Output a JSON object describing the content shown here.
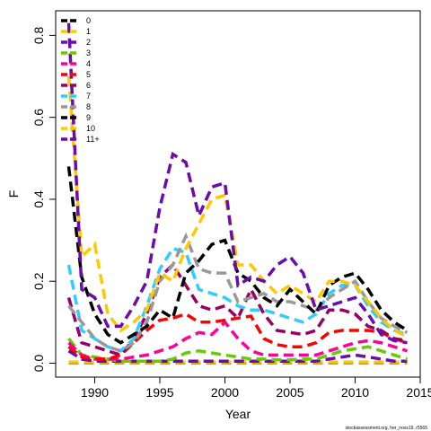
{
  "chart_data": {
    "type": "line",
    "xlabel": "Year",
    "ylabel": "F",
    "footnote": "stockassessment.org, her_noss19, r5565",
    "x": [
      1988,
      1989,
      1990,
      1991,
      1992,
      1993,
      1994,
      1995,
      1996,
      1997,
      1998,
      1999,
      2000,
      2001,
      2002,
      2003,
      2004,
      2005,
      2006,
      2007,
      2008,
      2009,
      2010,
      2011,
      2012,
      2013,
      2014
    ],
    "xlim": [
      1987,
      2015
    ],
    "xticks": [
      1990,
      1995,
      2000,
      2005,
      2010,
      2015
    ],
    "ylim": [
      -0.034,
      0.86
    ],
    "yticks": [
      {
        "value": 0,
        "label": "0.0"
      },
      0.2,
      0.4,
      0.6,
      0.8
    ],
    "legend": "topleft",
    "series": [
      {
        "name": "0",
        "color": "#000000",
        "values": [
          0.002,
          0.002,
          0.002,
          0.002,
          0.002,
          0.002,
          0.002,
          0.002,
          0.002,
          0.002,
          0.002,
          0.002,
          0.002,
          0.002,
          0.002,
          0.002,
          0.002,
          0.002,
          0.002,
          0.002,
          0.002,
          0.002,
          0.002,
          0.002,
          0.002,
          0.002,
          0.002
        ]
      },
      {
        "name": "1",
        "color": "#FFC800",
        "values": [
          0.003,
          0.003,
          0.003,
          0.003,
          0.003,
          0.003,
          0.003,
          0.003,
          0.003,
          0.003,
          0.003,
          0.003,
          0.003,
          0.003,
          0.003,
          0.003,
          0.003,
          0.003,
          0.003,
          0.003,
          0.003,
          0.003,
          0.003,
          0.003,
          0.003,
          0.003,
          0.003
        ]
      },
      {
        "name": "2",
        "color": "#6A0DAD",
        "values": [
          0.03,
          0.01,
          0.005,
          0.005,
          0.005,
          0.005,
          0.005,
          0.005,
          0.005,
          0.005,
          0.005,
          0.005,
          0.005,
          0.005,
          0.005,
          0.005,
          0.005,
          0.005,
          0.005,
          0.005,
          0.01,
          0.015,
          0.02,
          0.015,
          0.01,
          0.005,
          0.005
        ]
      },
      {
        "name": "3",
        "color": "#66CC00",
        "values": [
          0.06,
          0.02,
          0.015,
          0.01,
          0.005,
          0.005,
          0.005,
          0.005,
          0.01,
          0.025,
          0.03,
          0.025,
          0.02,
          0.015,
          0.01,
          0.01,
          0.008,
          0.008,
          0.01,
          0.01,
          0.02,
          0.03,
          0.035,
          0.04,
          0.03,
          0.02,
          0.01
        ]
      },
      {
        "name": "4",
        "color": "#FF0099",
        "values": [
          0.05,
          0.02,
          0.01,
          0.01,
          0.01,
          0.015,
          0.02,
          0.03,
          0.04,
          0.06,
          0.075,
          0.07,
          0.1,
          0.06,
          0.03,
          0.02,
          0.02,
          0.02,
          0.02,
          0.02,
          0.03,
          0.04,
          0.05,
          0.055,
          0.05,
          0.04,
          0.03
        ]
      },
      {
        "name": "5",
        "color": "#FF0000",
        "values": [
          0.04,
          0.015,
          0.01,
          0.01,
          0.02,
          0.05,
          0.08,
          0.105,
          0.11,
          0.12,
          0.1,
          0.1,
          0.105,
          0.11,
          0.115,
          0.06,
          0.045,
          0.04,
          0.04,
          0.05,
          0.075,
          0.08,
          0.08,
          0.08,
          0.075,
          0.06,
          0.05
        ]
      },
      {
        "name": "6",
        "color": "#990066",
        "values": [
          0.16,
          0.05,
          0.04,
          0.03,
          0.02,
          0.06,
          0.12,
          0.21,
          0.24,
          0.19,
          0.14,
          0.13,
          0.14,
          0.11,
          0.18,
          0.12,
          0.08,
          0.075,
          0.07,
          0.08,
          0.13,
          0.13,
          0.12,
          0.09,
          0.08,
          0.06,
          0.055
        ]
      },
      {
        "name": "7",
        "color": "#33CCFF",
        "values": [
          0.24,
          0.08,
          0.06,
          0.04,
          0.03,
          0.06,
          0.14,
          0.23,
          0.28,
          0.27,
          0.18,
          0.17,
          0.16,
          0.14,
          0.13,
          0.13,
          0.12,
          0.11,
          0.1,
          0.12,
          0.17,
          0.19,
          0.19,
          0.14,
          0.1,
          0.08,
          0.07
        ]
      },
      {
        "name": "8",
        "color": "#999999",
        "values": [
          0.14,
          0.1,
          0.06,
          0.04,
          0.03,
          0.05,
          0.1,
          0.2,
          0.24,
          0.31,
          0.23,
          0.22,
          0.22,
          0.15,
          0.16,
          0.17,
          0.15,
          0.15,
          0.14,
          0.13,
          0.16,
          0.18,
          0.2,
          0.15,
          0.11,
          0.09,
          0.075
        ]
      },
      {
        "name": "9",
        "color": "#000000",
        "values": [
          0.48,
          0.21,
          0.12,
          0.07,
          0.05,
          0.07,
          0.09,
          0.13,
          0.11,
          0.22,
          0.25,
          0.29,
          0.3,
          0.22,
          0.2,
          0.16,
          0.14,
          0.18,
          0.15,
          0.12,
          0.19,
          0.21,
          0.22,
          0.18,
          0.13,
          0.1,
          0.08
        ]
      },
      {
        "name": "10",
        "color": "#FFC800",
        "values": [
          0.7,
          0.26,
          0.29,
          0.12,
          0.08,
          0.1,
          0.13,
          0.22,
          0.2,
          0.28,
          0.34,
          0.4,
          0.41,
          0.24,
          0.24,
          0.2,
          0.17,
          0.19,
          0.17,
          0.15,
          0.2,
          0.2,
          0.19,
          0.15,
          0.11,
          0.08,
          0.065
        ]
      },
      {
        "name": "11+",
        "color": "#6A0DAD",
        "values": [
          0.83,
          0.18,
          0.16,
          0.09,
          0.09,
          0.14,
          0.2,
          0.38,
          0.51,
          0.49,
          0.36,
          0.43,
          0.44,
          0.19,
          0.21,
          0.2,
          0.24,
          0.26,
          0.22,
          0.13,
          0.14,
          0.15,
          0.16,
          0.12,
          0.07,
          0.055,
          0.05
        ]
      }
    ]
  }
}
